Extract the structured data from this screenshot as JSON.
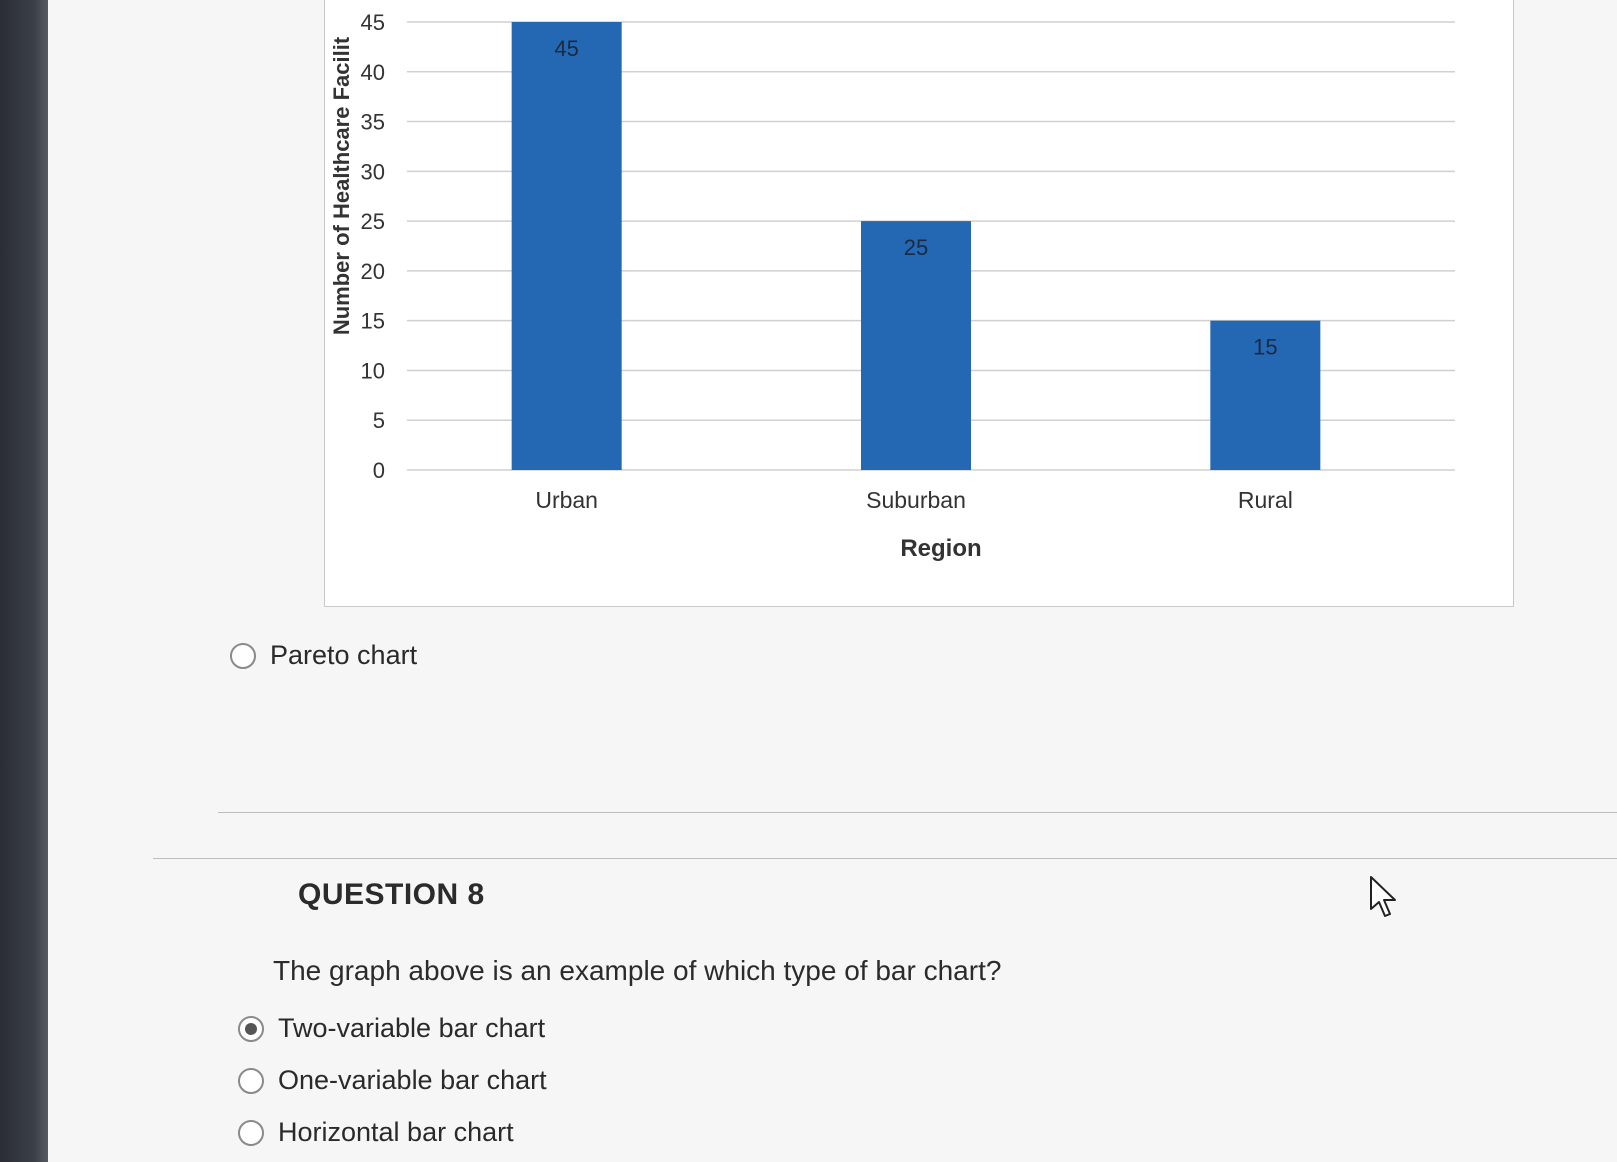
{
  "chart_data": {
    "type": "bar",
    "categories": [
      "Urban",
      "Suburban",
      "Rural"
    ],
    "values": [
      45,
      25,
      15
    ],
    "data_labels": [
      "45",
      "25",
      "15"
    ],
    "xlabel": "Region",
    "ylabel": "Number of Healthcare Facilit",
    "ylim": [
      0,
      45
    ],
    "yticks": [
      0,
      5,
      10,
      15,
      20,
      25,
      30,
      35,
      40,
      45
    ],
    "ytick_labels": [
      "0",
      "5",
      "10",
      "15",
      "20",
      "25",
      "30",
      "35",
      "40",
      "45"
    ],
    "grid": true,
    "bar_color": "#2468b4"
  },
  "previous_question": {
    "option_label": "Pareto chart",
    "selected": false
  },
  "question": {
    "title": "QUESTION 8",
    "text": "The graph above is an example of which type of bar chart?",
    "options": [
      {
        "label": "Two-variable bar chart",
        "selected": true
      },
      {
        "label": "One-variable bar chart",
        "selected": false
      },
      {
        "label": "Horizontal bar chart",
        "selected": false
      }
    ]
  }
}
